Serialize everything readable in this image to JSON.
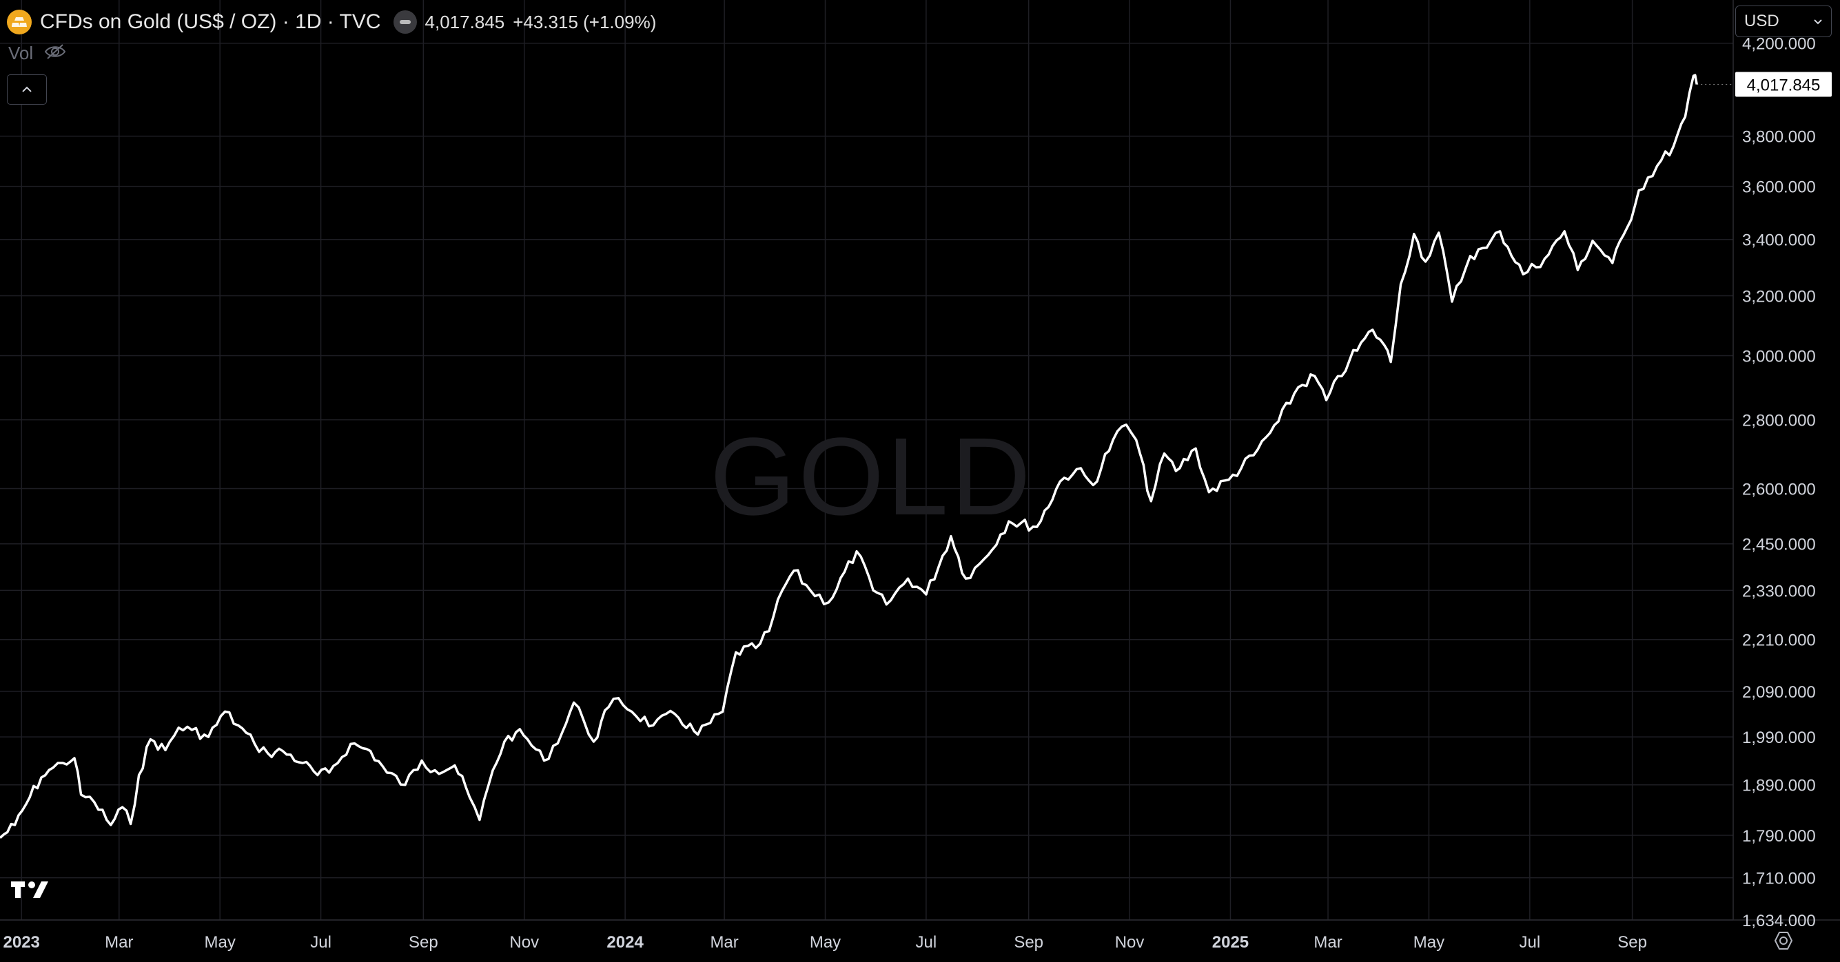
{
  "header": {
    "title": "CFDs on Gold (US$ / OZ) · 1D · TVC",
    "price": "4,017.845",
    "change": "+43.315 (+1.09%)",
    "vol_label": "Vol"
  },
  "currency_selector": {
    "value": "USD"
  },
  "watermark": "GOLD",
  "last_price_label": "4,017.845",
  "colors": {
    "background": "#000000",
    "line": "#ffffff",
    "grid": "#1e1e24",
    "logo": "#f0a81e"
  },
  "icons": [
    "gold-bars-icon",
    "eye-slash-icon",
    "chevron-up-icon",
    "chevron-down-icon",
    "tradingview-logo-icon",
    "settings-gear-icon"
  ],
  "chart_data": {
    "type": "line",
    "series": [
      {
        "values": [
          {
            "x": "2022-12-19",
            "y": 1785
          },
          {
            "x": "2022-12-28",
            "y": 1810
          },
          {
            "x": "2023-01-06",
            "y": 1865
          },
          {
            "x": "2023-01-13",
            "y": 1905
          },
          {
            "x": "2023-01-20",
            "y": 1925
          },
          {
            "x": "2023-01-26",
            "y": 1935
          },
          {
            "x": "2023-02-02",
            "y": 1945
          },
          {
            "x": "2023-02-06",
            "y": 1870
          },
          {
            "x": "2023-02-14",
            "y": 1855
          },
          {
            "x": "2023-02-24",
            "y": 1810
          },
          {
            "x": "2023-03-03",
            "y": 1845
          },
          {
            "x": "2023-03-08",
            "y": 1812
          },
          {
            "x": "2023-03-13",
            "y": 1910
          },
          {
            "x": "2023-03-20",
            "y": 1985
          },
          {
            "x": "2023-03-29",
            "y": 1962
          },
          {
            "x": "2023-04-06",
            "y": 2010
          },
          {
            "x": "2023-04-14",
            "y": 2005
          },
          {
            "x": "2023-04-24",
            "y": 1990
          },
          {
            "x": "2023-05-04",
            "y": 2045
          },
          {
            "x": "2023-05-12",
            "y": 2015
          },
          {
            "x": "2023-05-22",
            "y": 1975
          },
          {
            "x": "2023-05-30",
            "y": 1955
          },
          {
            "x": "2023-06-08",
            "y": 1960
          },
          {
            "x": "2023-06-20",
            "y": 1935
          },
          {
            "x": "2023-06-29",
            "y": 1910
          },
          {
            "x": "2023-07-06",
            "y": 1915
          },
          {
            "x": "2023-07-19",
            "y": 1975
          },
          {
            "x": "2023-07-31",
            "y": 1960
          },
          {
            "x": "2023-08-10",
            "y": 1915
          },
          {
            "x": "2023-08-21",
            "y": 1890
          },
          {
            "x": "2023-08-31",
            "y": 1940
          },
          {
            "x": "2023-09-08",
            "y": 1920
          },
          {
            "x": "2023-09-20",
            "y": 1930
          },
          {
            "x": "2023-09-29",
            "y": 1865
          },
          {
            "x": "2023-10-05",
            "y": 1820
          },
          {
            "x": "2023-10-13",
            "y": 1920
          },
          {
            "x": "2023-10-20",
            "y": 1980
          },
          {
            "x": "2023-10-27",
            "y": 2000
          },
          {
            "x": "2023-11-03",
            "y": 1985
          },
          {
            "x": "2023-11-13",
            "y": 1940
          },
          {
            "x": "2023-11-24",
            "y": 2000
          },
          {
            "x": "2023-12-01",
            "y": 2065
          },
          {
            "x": "2023-12-07",
            "y": 2025
          },
          {
            "x": "2023-12-13",
            "y": 1980
          },
          {
            "x": "2023-12-22",
            "y": 2055
          },
          {
            "x": "2023-12-28",
            "y": 2075
          },
          {
            "x": "2024-01-05",
            "y": 2045
          },
          {
            "x": "2024-01-18",
            "y": 2015
          },
          {
            "x": "2024-01-31",
            "y": 2040
          },
          {
            "x": "2024-02-14",
            "y": 1995
          },
          {
            "x": "2024-02-29",
            "y": 2045
          },
          {
            "x": "2024-03-08",
            "y": 2180
          },
          {
            "x": "2024-03-20",
            "y": 2190
          },
          {
            "x": "2024-03-28",
            "y": 2230
          },
          {
            "x": "2024-04-05",
            "y": 2330
          },
          {
            "x": "2024-04-12",
            "y": 2380
          },
          {
            "x": "2024-04-22",
            "y": 2330
          },
          {
            "x": "2024-05-03",
            "y": 2300
          },
          {
            "x": "2024-05-20",
            "y": 2430
          },
          {
            "x": "2024-05-30",
            "y": 2330
          },
          {
            "x": "2024-06-07",
            "y": 2295
          },
          {
            "x": "2024-06-20",
            "y": 2360
          },
          {
            "x": "2024-07-01",
            "y": 2320
          },
          {
            "x": "2024-07-16",
            "y": 2470
          },
          {
            "x": "2024-07-25",
            "y": 2360
          },
          {
            "x": "2024-08-05",
            "y": 2410
          },
          {
            "x": "2024-08-20",
            "y": 2510
          },
          {
            "x": "2024-09-06",
            "y": 2495
          },
          {
            "x": "2024-09-20",
            "y": 2620
          },
          {
            "x": "2024-09-30",
            "y": 2655
          },
          {
            "x": "2024-10-10",
            "y": 2610
          },
          {
            "x": "2024-10-22",
            "y": 2740
          },
          {
            "x": "2024-10-30",
            "y": 2785
          },
          {
            "x": "2024-11-05",
            "y": 2740
          },
          {
            "x": "2024-11-14",
            "y": 2565
          },
          {
            "x": "2024-11-22",
            "y": 2700
          },
          {
            "x": "2024-11-29",
            "y": 2650
          },
          {
            "x": "2024-12-11",
            "y": 2715
          },
          {
            "x": "2024-12-19",
            "y": 2590
          },
          {
            "x": "2024-12-31",
            "y": 2625
          },
          {
            "x": "2025-01-15",
            "y": 2695
          },
          {
            "x": "2025-01-30",
            "y": 2795
          },
          {
            "x": "2025-02-11",
            "y": 2900
          },
          {
            "x": "2025-02-21",
            "y": 2935
          },
          {
            "x": "2025-02-28",
            "y": 2860
          },
          {
            "x": "2025-03-14",
            "y": 2985
          },
          {
            "x": "2025-03-28",
            "y": 3085
          },
          {
            "x": "2025-04-04",
            "y": 3035
          },
          {
            "x": "2025-04-08",
            "y": 2980
          },
          {
            "x": "2025-04-14",
            "y": 3240
          },
          {
            "x": "2025-04-22",
            "y": 3420
          },
          {
            "x": "2025-04-29",
            "y": 3320
          },
          {
            "x": "2025-05-07",
            "y": 3425
          },
          {
            "x": "2025-05-15",
            "y": 3180
          },
          {
            "x": "2025-05-26",
            "y": 3340
          },
          {
            "x": "2025-06-05",
            "y": 3370
          },
          {
            "x": "2025-06-13",
            "y": 3430
          },
          {
            "x": "2025-06-27",
            "y": 3275
          },
          {
            "x": "2025-07-10",
            "y": 3330
          },
          {
            "x": "2025-07-22",
            "y": 3430
          },
          {
            "x": "2025-07-30",
            "y": 3290
          },
          {
            "x": "2025-08-08",
            "y": 3395
          },
          {
            "x": "2025-08-20",
            "y": 3315
          },
          {
            "x": "2025-08-29",
            "y": 3445
          },
          {
            "x": "2025-09-05",
            "y": 3585
          },
          {
            "x": "2025-09-16",
            "y": 3680
          },
          {
            "x": "2025-09-26",
            "y": 3760
          },
          {
            "x": "2025-10-03",
            "y": 3880
          },
          {
            "x": "2025-10-08",
            "y": 4055
          },
          {
            "x": "2025-10-10",
            "y": 4017.845
          }
        ]
      }
    ],
    "y_ticks": [
      "4,200.000",
      "3,800.000",
      "3,600.000",
      "3,400.000",
      "3,200.000",
      "3,000.000",
      "2,800.000",
      "2,600.000",
      "2,450.000",
      "2,330.000",
      "2,210.000",
      "2,090.000",
      "1,990.000",
      "1,890.000",
      "1,790.000",
      "1,710.000",
      "1,634.000"
    ],
    "y_tick_values": [
      4200,
      3800,
      3600,
      3400,
      3200,
      3000,
      2800,
      2600,
      2450,
      2330,
      2210,
      2090,
      1990,
      1890,
      1790,
      1710,
      1634
    ],
    "x_ticks": [
      {
        "label": "2023",
        "date": "2023-01-01",
        "bold": true
      },
      {
        "label": "Mar",
        "date": "2023-03-01"
      },
      {
        "label": "May",
        "date": "2023-05-01"
      },
      {
        "label": "Jul",
        "date": "2023-07-01"
      },
      {
        "label": "Sep",
        "date": "2023-09-01"
      },
      {
        "label": "Nov",
        "date": "2023-11-01"
      },
      {
        "label": "2024",
        "date": "2024-01-01",
        "bold": true
      },
      {
        "label": "Mar",
        "date": "2024-03-01"
      },
      {
        "label": "May",
        "date": "2024-05-01"
      },
      {
        "label": "Jul",
        "date": "2024-07-01"
      },
      {
        "label": "Sep",
        "date": "2024-09-01"
      },
      {
        "label": "Nov",
        "date": "2024-11-01"
      },
      {
        "label": "2025",
        "date": "2025-01-01",
        "bold": true
      },
      {
        "label": "Mar",
        "date": "2025-03-01"
      },
      {
        "label": "May",
        "date": "2025-05-01"
      },
      {
        "label": "Jul",
        "date": "2025-07-01"
      },
      {
        "label": "Sep",
        "date": "2025-09-01"
      }
    ],
    "y_scale": "log",
    "ylim": [
      1634,
      4400
    ],
    "xlim": [
      "2022-12-19",
      "2025-11-01"
    ],
    "grid": true,
    "legend": "none"
  }
}
